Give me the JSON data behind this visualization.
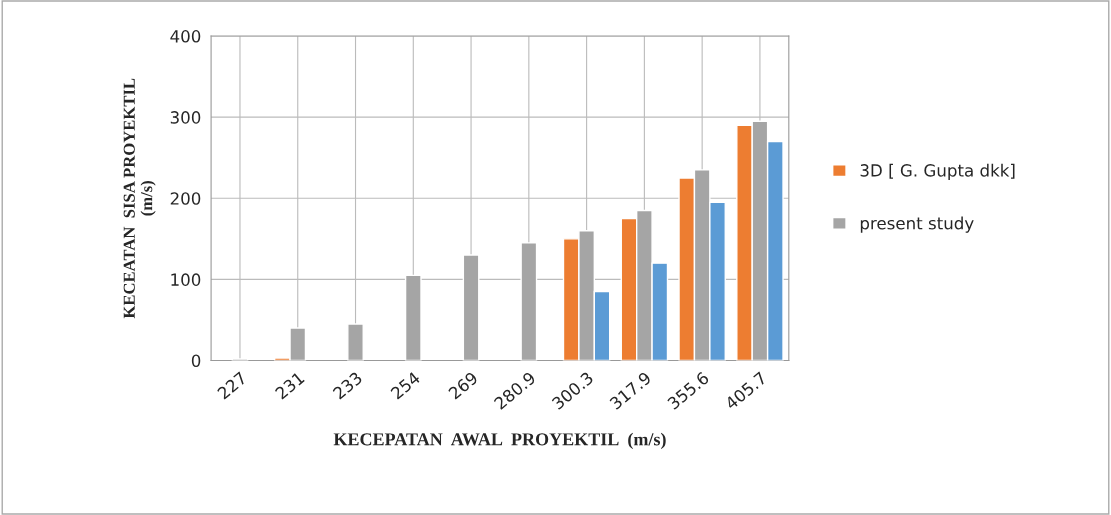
{
  "chart_data": {
    "type": "bar",
    "xlabel": "KECEPATAN  AWAL  PROYEKTIL  (m/s)",
    "ylabel": "KECEATAN  SISA PROYEKTIL\n(m/s)",
    "categories": [
      "227",
      "231",
      "233",
      "254",
      "269",
      "280.9",
      "300.3",
      "317.9",
      "355.6",
      "405.7"
    ],
    "series": [
      {
        "name": "3D [ G. Gupta dkk]",
        "color": "#ed7d31",
        "values": [
          null,
          3,
          null,
          null,
          null,
          null,
          150,
          175,
          225,
          290
        ]
      },
      {
        "name": "present study",
        "color": "#a5a5a5",
        "values": [
          2,
          40,
          45,
          105,
          130,
          145,
          160,
          185,
          235,
          295
        ]
      },
      {
        "color": "#5b9bd5",
        "values": [
          null,
          null,
          null,
          null,
          null,
          null,
          85,
          120,
          195,
          270
        ]
      }
    ],
    "ylim": [
      0,
      400
    ],
    "yticks": [
      0,
      100,
      200,
      300,
      400
    ],
    "grid": true,
    "legend": "right"
  }
}
